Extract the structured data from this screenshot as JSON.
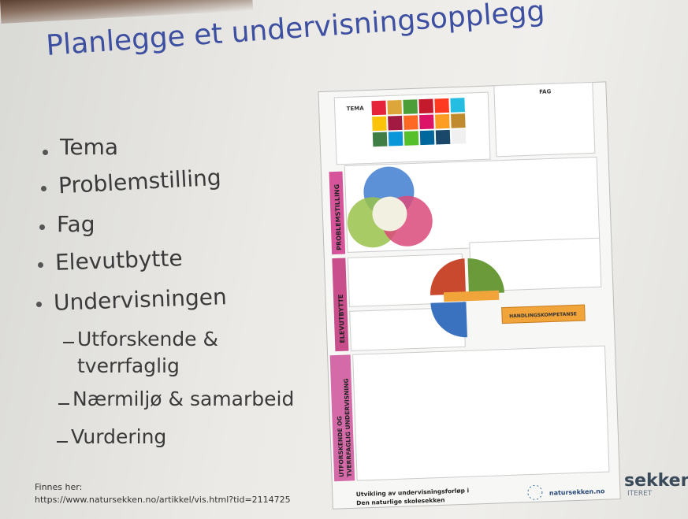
{
  "slide": {
    "title": "Planlegge et undervisningsopplegg",
    "bullets": [
      "Tema",
      "Problemstilling",
      "Fag",
      "Elevutbytte",
      "Undervisningen"
    ],
    "sub_bullets": [
      "Utforskende & tverrfaglig",
      "Nærmiljø & samarbeid",
      "Vurdering"
    ],
    "source_label": "Finnes her:",
    "source_url": "https://www.natursekken.no/artikkel/vis.html?tid=2114725"
  },
  "worksheet": {
    "tema": "TEMA",
    "fag": "FAG",
    "problemstilling": "PROBLEMSTILLING",
    "elevutbytte": "ELEVUTBYTTE",
    "undervisning_lines": [
      "UTFORSKENDE OG",
      "TVERRFAGLIG UNDERVISNING"
    ],
    "handlingskompetanse": "HANDLINGSKOMPETANSE",
    "footer_lines": [
      "Utvikling av undervisningsforløp i",
      "Den naturlige skolesekken"
    ],
    "logo": "natursekken.no",
    "partial_brand": "sekken",
    "partial_sub": "ITERET"
  }
}
